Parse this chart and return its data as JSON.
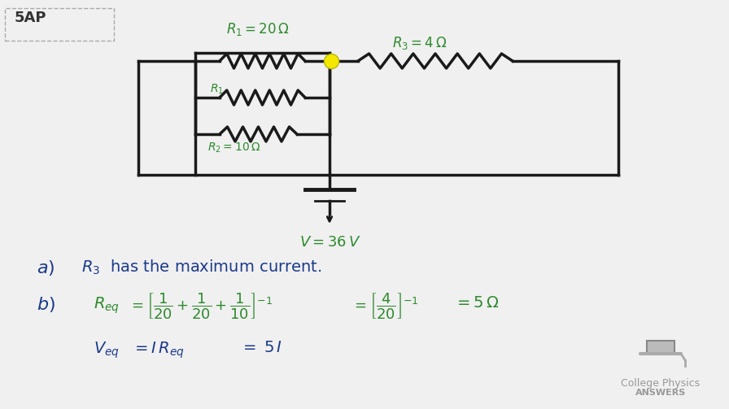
{
  "bg_color": "#f0f0f0",
  "title_box_text": "5AP",
  "circuit_color": "#1a1a1a",
  "green_color": "#2d8a2d",
  "blue_color": "#1a3a8a",
  "logo_text1": "College Physics",
  "logo_text2": "ANSWERS",
  "yellow_dot_color": "#f5e800"
}
